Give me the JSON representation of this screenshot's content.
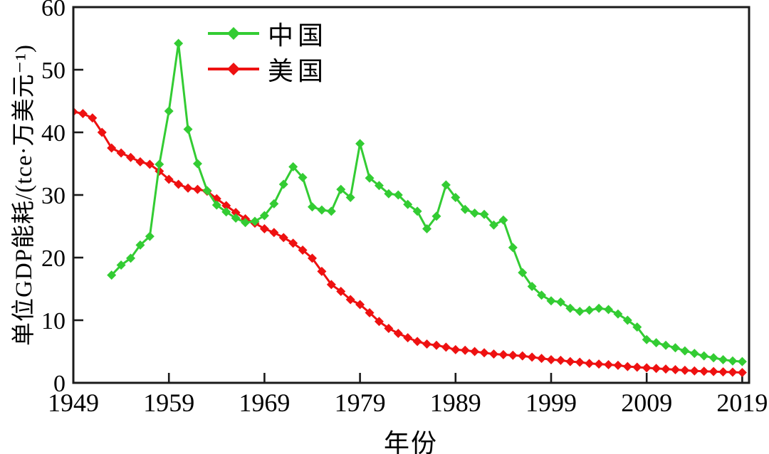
{
  "figure": {
    "x_axis_title": "年份",
    "y_axis_title": "单位GDP能耗/(tce·万美元⁻¹)"
  },
  "colors": {
    "axis": "#1a1a1a",
    "background": "#ffffff",
    "china_green": "#33CC33",
    "usa_red": "#EE1111"
  },
  "chart_data": {
    "type": "line",
    "title": "",
    "xlabel": "年份",
    "ylabel": "单位GDP能耗/(tce·万美元⁻¹)",
    "xlim": [
      1949,
      2019.7
    ],
    "ylim": [
      0,
      60
    ],
    "x_ticks": [
      1949,
      1959,
      1969,
      1979,
      1989,
      1999,
      2009,
      2019
    ],
    "y_ticks": [
      0,
      10,
      20,
      30,
      40,
      50,
      60
    ],
    "grid": false,
    "legend_position": "inside-top-left",
    "marker": "diamond",
    "series": [
      {
        "name": "中国",
        "color": "#33CC33",
        "start_year": 1953,
        "values": [
          17.2,
          18.8,
          19.9,
          22.0,
          23.4,
          34.9,
          43.4,
          54.2,
          40.5,
          35.0,
          30.7,
          28.4,
          27.3,
          26.3,
          25.6,
          25.8,
          26.7,
          28.6,
          31.7,
          34.5,
          32.8,
          28.1,
          27.6,
          27.4,
          30.9,
          29.6,
          38.2,
          32.7,
          31.5,
          30.2,
          30.0,
          28.5,
          27.4,
          24.6,
          26.6,
          31.6,
          29.6,
          27.7,
          27.1,
          26.9,
          25.2,
          26.0,
          21.6,
          17.6,
          15.4,
          14.0,
          13.1,
          12.9,
          11.9,
          11.4,
          11.6,
          11.9,
          11.7,
          11.0,
          10.0,
          8.9,
          6.9,
          6.4,
          6.0,
          5.6,
          5.1,
          4.7,
          4.3,
          4.0,
          3.7,
          3.5,
          3.4
        ]
      },
      {
        "name": "美国",
        "color": "#EE1111",
        "start_year": 1949,
        "values": [
          43.3,
          43.0,
          42.3,
          40.0,
          37.5,
          36.7,
          36.0,
          35.3,
          34.9,
          33.8,
          32.5,
          31.7,
          31.1,
          30.9,
          30.6,
          29.4,
          28.3,
          27.2,
          26.2,
          25.5,
          24.6,
          24.0,
          23.2,
          22.3,
          21.2,
          19.9,
          17.8,
          15.7,
          14.6,
          13.3,
          12.5,
          11.2,
          9.8,
          8.7,
          7.9,
          7.2,
          6.6,
          6.2,
          6.0,
          5.7,
          5.3,
          5.2,
          5.0,
          4.8,
          4.6,
          4.5,
          4.4,
          4.3,
          4.1,
          3.9,
          3.7,
          3.6,
          3.4,
          3.3,
          3.1,
          3.0,
          2.9,
          2.8,
          2.6,
          2.5,
          2.4,
          2.3,
          2.2,
          2.1,
          2.0,
          1.9,
          1.85,
          1.8,
          1.75,
          1.7,
          1.65
        ]
      }
    ]
  }
}
